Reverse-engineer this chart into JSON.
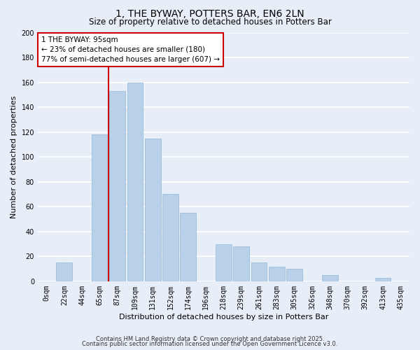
{
  "title": "1, THE BYWAY, POTTERS BAR, EN6 2LN",
  "subtitle": "Size of property relative to detached houses in Potters Bar",
  "xlabel": "Distribution of detached houses by size in Potters Bar",
  "ylabel": "Number of detached properties",
  "bar_labels": [
    "0sqm",
    "22sqm",
    "44sqm",
    "65sqm",
    "87sqm",
    "109sqm",
    "131sqm",
    "152sqm",
    "174sqm",
    "196sqm",
    "218sqm",
    "239sqm",
    "261sqm",
    "283sqm",
    "305sqm",
    "326sqm",
    "348sqm",
    "370sqm",
    "392sqm",
    "413sqm",
    "435sqm"
  ],
  "bar_values": [
    0,
    15,
    0,
    118,
    153,
    160,
    115,
    70,
    55,
    0,
    30,
    28,
    15,
    12,
    10,
    0,
    5,
    0,
    0,
    3,
    0
  ],
  "bar_color": "#b8d0e8",
  "bar_edge_color": "#90b8d8",
  "ylim": [
    0,
    200
  ],
  "yticks": [
    0,
    20,
    40,
    60,
    80,
    100,
    120,
    140,
    160,
    180,
    200
  ],
  "vline_x_index": 4,
  "vline_color": "#cc0000",
  "annotation_title": "1 THE BYWAY: 95sqm",
  "annotation_line1": "← 23% of detached houses are smaller (180)",
  "annotation_line2": "77% of semi-detached houses are larger (607) →",
  "footer1": "Contains HM Land Registry data © Crown copyright and database right 2025.",
  "footer2": "Contains public sector information licensed under the Open Government Licence v3.0.",
  "bg_color": "#e8eef8",
  "plot_bg_color": "#e8eef8",
  "grid_color": "#ffffff",
  "title_fontsize": 10,
  "subtitle_fontsize": 8.5,
  "axis_label_fontsize": 8,
  "tick_fontsize": 7
}
